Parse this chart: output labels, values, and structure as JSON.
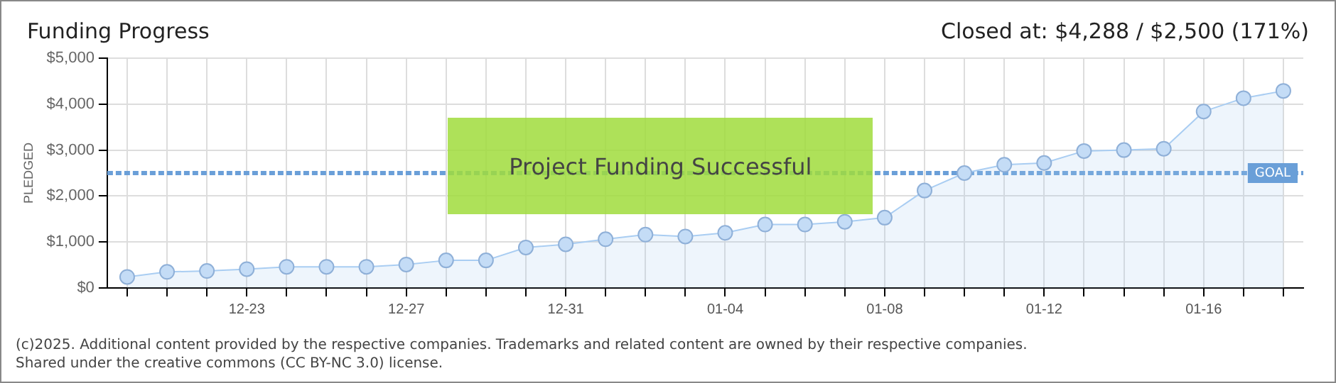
{
  "chart_data": {
    "type": "area",
    "title": "Funding Progress",
    "ylabel": "PLEDGED",
    "categories": [
      null,
      null,
      null,
      "12-23",
      null,
      null,
      null,
      "12-27",
      null,
      null,
      null,
      "12-31",
      null,
      null,
      null,
      "01-04",
      null,
      null,
      null,
      "01-08",
      null,
      null,
      null,
      "01-12",
      null,
      null,
      null,
      "01-16",
      null,
      null
    ],
    "series": [
      {
        "color": "#a9cdf2",
        "values": [
          240,
          350,
          370,
          410,
          460,
          460,
          460,
          510,
          600,
          600,
          880,
          950,
          1060,
          1160,
          1120,
          1200,
          1380,
          1380,
          1440,
          1530,
          2120,
          2500,
          2680,
          2720,
          2980,
          3000,
          3030,
          3840,
          4130,
          4288
        ]
      }
    ],
    "ylim": [
      0,
      5000
    ],
    "yticks": [
      {
        "value": 0,
        "label": "$0"
      },
      {
        "value": 1000,
        "label": "$1,000"
      },
      {
        "value": 2000,
        "label": "$2,000"
      },
      {
        "value": 3000,
        "label": "$3,000"
      },
      {
        "value": 4000,
        "label": "$4,000"
      },
      {
        "value": 5000,
        "label": "$5,000"
      }
    ],
    "ref_lines": [
      {
        "axis": "y",
        "value": 2500,
        "label": "GOAL",
        "color": "#6a9fd8",
        "line_style": "dashed"
      }
    ],
    "annotations": [
      "Closed at: $4,288 / $2,500 (171%)",
      "Project Funding Successful",
      "(c)2025. Additional content provided by the respective companies. Trademarks and related content are owned by their respective companies.",
      "Shared under the creative commons (CC BY-NC 3.0) license."
    ],
    "grid": true,
    "marker": "circle",
    "line_style": "solid"
  }
}
